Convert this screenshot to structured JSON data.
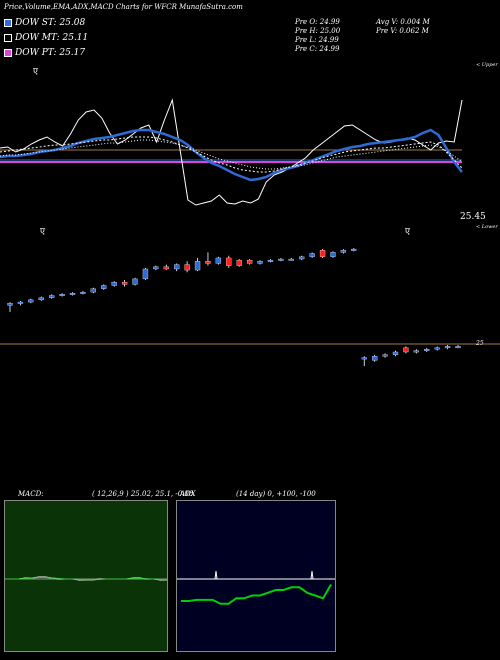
{
  "header": {
    "title": "Price,Volume,EMA,ADX,MACD Charts for WFCR MunafaSutra.com"
  },
  "legend": [
    {
      "label": "DOW ST: 25.08",
      "color": "#2e6bd6"
    },
    {
      "label": "DOW MT: 25.11",
      "color": "#000000"
    },
    {
      "label": "DOW PT: 25.17",
      "color": "#e040e0"
    }
  ],
  "quote": {
    "prev_open": "Pre O: 24.99",
    "prev_high": "Pre H: 25.00",
    "prev_low": "Pre L: 24.99",
    "prev_close": "Pre C: 24.99",
    "avg_vol": "Avg V: 0.004 M",
    "prev_vol": "Pre V: 0.062 M"
  },
  "labels": {
    "upper_band": "< Upper",
    "lower_band": "< Lower",
    "last_price": "25.45",
    "candle_price": "25",
    "marker": "ए"
  },
  "macd": {
    "label": "MACD:",
    "params": "( 12,26,9 ) 25.02, 25.1, -0.08"
  },
  "adx": {
    "label": "ADX",
    "params": "(14 day) 0, +100, -100"
  },
  "chart_data": [
    {
      "type": "line",
      "panel": "price-ema",
      "x": [
        0,
        1,
        2,
        3,
        4,
        5,
        6,
        7,
        8,
        9,
        10,
        11,
        12,
        13,
        14,
        15,
        16,
        17,
        18,
        19,
        20,
        21,
        22,
        23,
        24,
        25,
        26,
        27,
        28,
        29,
        30,
        31,
        32,
        33,
        34,
        35,
        36,
        37,
        38,
        39,
        40,
        41,
        42,
        43,
        44,
        45,
        46,
        47,
        48,
        49,
        50,
        51,
        52,
        53,
        54,
        55,
        56,
        57,
        58,
        59
      ],
      "series": [
        {
          "color": "#ffffff",
          "values": [
            148,
            147,
            152,
            149,
            144,
            140,
            137,
            142,
            146,
            134,
            120,
            112,
            110,
            118,
            133,
            144,
            140,
            134,
            128,
            125,
            142,
            120,
            100,
            150,
            200,
            205,
            203,
            201,
            195,
            203,
            204,
            201,
            203,
            199,
            182,
            175,
            172,
            168,
            163,
            158,
            150,
            144,
            138,
            132,
            126,
            125,
            130,
            135,
            140,
            143,
            142,
            140,
            138,
            140,
            145,
            150,
            143,
            141,
            142,
            100
          ]
        },
        {
          "color": "#2e6bd6",
          "values": [
            157,
            156,
            156,
            155,
            154,
            152,
            151,
            150,
            148,
            146,
            143,
            141,
            139,
            138,
            137,
            135,
            133,
            131,
            130,
            130,
            132,
            134,
            137,
            140,
            145,
            152,
            158,
            163,
            166,
            170,
            174,
            177,
            180,
            179,
            177,
            173,
            170,
            168,
            166,
            163,
            160,
            157,
            154,
            151,
            149,
            147,
            146,
            144,
            143,
            142,
            141,
            140,
            139,
            137,
            133,
            130,
            135,
            148,
            162,
            172
          ]
        },
        {
          "color": "#ffffff",
          "values": [
            152,
            151,
            150,
            149,
            148,
            147,
            146,
            145,
            145,
            144,
            143,
            142,
            141,
            140,
            140,
            139,
            138,
            137,
            137,
            137,
            138,
            140,
            142,
            145,
            148,
            152,
            156,
            160,
            163,
            165,
            168,
            170,
            171,
            172,
            172,
            171,
            169,
            167,
            165,
            163,
            161,
            158,
            156,
            154,
            152,
            151,
            150,
            149,
            148,
            148,
            147,
            146,
            145,
            144,
            143,
            142,
            145,
            152,
            160,
            168
          ]
        },
        {
          "color": "#ffffff",
          "values": [
            156,
            155,
            155,
            154,
            153,
            152,
            151,
            150,
            149,
            148,
            147,
            146,
            145,
            144,
            143,
            143,
            142,
            141,
            140,
            140,
            141,
            142,
            143,
            145,
            147,
            150,
            153,
            156,
            159,
            161,
            163,
            165,
            167,
            168,
            169,
            169,
            168,
            167,
            166,
            165,
            163,
            161,
            159,
            157,
            156,
            155,
            154,
            153,
            152,
            151,
            150,
            149,
            148,
            147,
            146,
            145,
            147,
            151,
            156,
            162
          ]
        }
      ],
      "h_lines": [
        {
          "value": 25.08,
          "color": "#2e6bd6"
        },
        {
          "value": 25.11,
          "color": "#ffffff"
        },
        {
          "value": 25.17,
          "color": "#e040e0"
        }
      ]
    },
    {
      "type": "candlestick",
      "panel": "price-candles",
      "candles": [
        {
          "o": 24.72,
          "h": 24.75,
          "l": 24.66,
          "c": 24.74,
          "color": "blue"
        },
        {
          "o": 24.74,
          "h": 24.76,
          "l": 24.72,
          "c": 24.75,
          "color": "blue"
        },
        {
          "o": 24.75,
          "h": 24.78,
          "l": 24.74,
          "c": 24.77,
          "color": "blue"
        },
        {
          "o": 24.77,
          "h": 24.8,
          "l": 24.76,
          "c": 24.79,
          "color": "blue"
        },
        {
          "o": 24.79,
          "h": 24.82,
          "l": 24.78,
          "c": 24.81,
          "color": "blue"
        },
        {
          "o": 24.81,
          "h": 24.83,
          "l": 24.8,
          "c": 24.82,
          "color": "blue"
        },
        {
          "o": 24.82,
          "h": 24.84,
          "l": 24.81,
          "c": 24.83,
          "color": "blue"
        },
        {
          "o": 24.83,
          "h": 24.85,
          "l": 24.82,
          "c": 24.84,
          "color": "blue"
        },
        {
          "o": 24.84,
          "h": 24.88,
          "l": 24.83,
          "c": 24.87,
          "color": "blue"
        },
        {
          "o": 24.87,
          "h": 24.91,
          "l": 24.86,
          "c": 24.9,
          "color": "blue"
        },
        {
          "o": 24.9,
          "h": 24.94,
          "l": 24.89,
          "c": 24.93,
          "color": "blue"
        },
        {
          "o": 24.93,
          "h": 24.95,
          "l": 24.89,
          "c": 24.91,
          "color": "red"
        },
        {
          "o": 24.91,
          "h": 24.97,
          "l": 24.9,
          "c": 24.96,
          "color": "blue"
        },
        {
          "o": 24.96,
          "h": 25.06,
          "l": 24.95,
          "c": 25.05,
          "color": "blue"
        },
        {
          "o": 25.05,
          "h": 25.08,
          "l": 25.04,
          "c": 25.07,
          "color": "blue"
        },
        {
          "o": 25.07,
          "h": 25.09,
          "l": 25.04,
          "c": 25.05,
          "color": "red"
        },
        {
          "o": 25.05,
          "h": 25.1,
          "l": 25.03,
          "c": 25.09,
          "color": "blue"
        },
        {
          "o": 25.09,
          "h": 25.12,
          "l": 25.02,
          "c": 25.04,
          "color": "red"
        },
        {
          "o": 25.04,
          "h": 25.15,
          "l": 25.03,
          "c": 25.12,
          "color": "blue"
        },
        {
          "o": 25.12,
          "h": 25.2,
          "l": 25.08,
          "c": 25.1,
          "color": "red"
        },
        {
          "o": 25.1,
          "h": 25.16,
          "l": 25.09,
          "c": 25.15,
          "color": "blue"
        },
        {
          "o": 25.15,
          "h": 25.17,
          "l": 25.06,
          "c": 25.08,
          "color": "red"
        },
        {
          "o": 25.08,
          "h": 25.14,
          "l": 25.07,
          "c": 25.13,
          "color": "red"
        },
        {
          "o": 25.13,
          "h": 25.14,
          "l": 25.09,
          "c": 25.1,
          "color": "red"
        },
        {
          "o": 25.1,
          "h": 25.13,
          "l": 25.09,
          "c": 25.12,
          "color": "blue"
        },
        {
          "o": 25.12,
          "h": 25.14,
          "l": 25.11,
          "c": 25.13,
          "color": "blue"
        },
        {
          "o": 25.13,
          "h": 25.15,
          "l": 25.12,
          "c": 25.14,
          "color": "blue"
        },
        {
          "o": 25.14,
          "h": 25.15,
          "l": 25.13,
          "c": 25.14,
          "color": "blue"
        },
        {
          "o": 25.14,
          "h": 25.17,
          "l": 25.13,
          "c": 25.16,
          "color": "blue"
        },
        {
          "o": 25.16,
          "h": 25.2,
          "l": 25.15,
          "c": 25.19,
          "color": "blue"
        },
        {
          "o": 25.22,
          "h": 25.23,
          "l": 25.15,
          "c": 25.16,
          "color": "red"
        },
        {
          "o": 25.16,
          "h": 25.21,
          "l": 25.15,
          "c": 25.2,
          "color": "blue"
        },
        {
          "o": 25.2,
          "h": 25.23,
          "l": 25.19,
          "c": 25.22,
          "color": "blue"
        },
        {
          "o": 25.22,
          "h": 25.24,
          "l": 25.21,
          "c": 25.23,
          "color": "blue"
        },
        {
          "o": 24.5,
          "h": 24.51,
          "l": 24.44,
          "c": 24.5,
          "color": "blue"
        },
        {
          "o": 24.48,
          "h": 24.52,
          "l": 24.47,
          "c": 24.51,
          "color": "blue"
        },
        {
          "o": 24.51,
          "h": 24.53,
          "l": 24.5,
          "c": 24.52,
          "color": "blue"
        },
        {
          "o": 24.52,
          "h": 24.55,
          "l": 24.51,
          "c": 24.54,
          "color": "blue"
        },
        {
          "o": 24.57,
          "h": 24.58,
          "l": 24.53,
          "c": 24.54,
          "color": "red"
        },
        {
          "o": 24.54,
          "h": 24.56,
          "l": 24.53,
          "c": 24.55,
          "color": "blue"
        },
        {
          "o": 24.55,
          "h": 24.57,
          "l": 24.54,
          "c": 24.56,
          "color": "blue"
        },
        {
          "o": 24.56,
          "h": 24.58,
          "l": 24.55,
          "c": 24.57,
          "color": "blue"
        },
        {
          "o": 24.57,
          "h": 24.59,
          "l": 24.56,
          "c": 24.58,
          "color": "blue"
        },
        {
          "o": 24.58,
          "h": 24.59,
          "l": 24.57,
          "c": 24.58,
          "color": "blue"
        }
      ]
    },
    {
      "type": "line",
      "panel": "macd",
      "series": [
        {
          "color": "#ffffff",
          "values": [
            0,
            0,
            0,
            0.1,
            0.1,
            0.2,
            0.2,
            0.1,
            0,
            0,
            0,
            -0.1,
            -0.1,
            -0.1,
            0,
            0,
            0,
            0,
            0,
            0.1,
            0.1,
            0,
            0,
            -0.1,
            -0.1
          ]
        },
        {
          "color": "#40c040",
          "values": [
            0,
            0,
            0,
            0.05,
            0.1,
            0.15,
            0.15,
            0.1,
            0.05,
            0,
            0,
            -0.05,
            -0.08,
            -0.08,
            -0.05,
            0,
            0,
            0,
            0,
            0.05,
            0.05,
            0.03,
            0,
            -0.05,
            -0.08
          ]
        }
      ]
    },
    {
      "type": "line",
      "panel": "adx",
      "series": [
        {
          "color": "#ffffff",
          "values": [
            0,
            0,
            0,
            0,
            0,
            0,
            0,
            0,
            0,
            0,
            0,
            0,
            0,
            0,
            0,
            0,
            0,
            0,
            0,
            0
          ]
        },
        {
          "color": "#00d000",
          "values": [
            -40,
            -40,
            -38,
            -38,
            -38,
            -45,
            -45,
            -35,
            -35,
            -30,
            -30,
            -25,
            -20,
            -20,
            -15,
            -15,
            -25,
            -30,
            -35,
            -10
          ]
        }
      ]
    }
  ]
}
